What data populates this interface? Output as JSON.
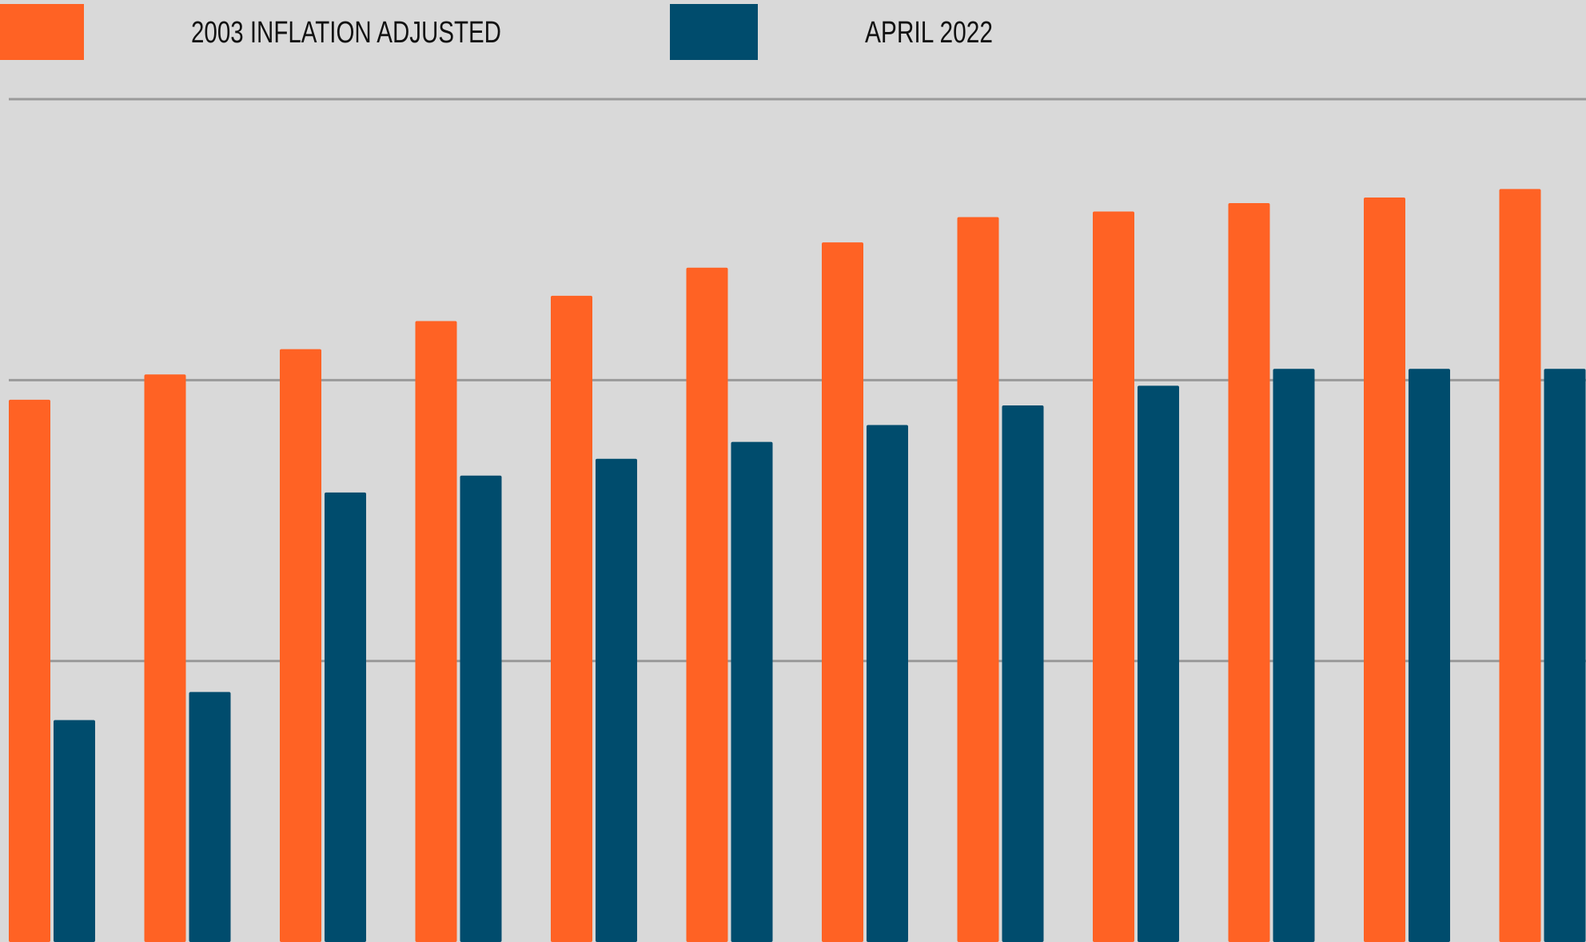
{
  "chart_data": {
    "type": "bar",
    "categories": [
      null,
      null,
      null,
      null,
      null,
      null,
      null,
      null,
      null,
      null,
      null,
      null
    ],
    "series": [
      {
        "name": "2003 INFLATION ADJUSTED",
        "color": "#ff6224",
        "values": [
          1.93,
          2.02,
          2.11,
          2.21,
          2.3,
          2.4,
          2.49,
          2.58,
          2.6,
          2.63,
          2.65,
          2.68
        ]
      },
      {
        "name": "APRIL 2022",
        "color": "#004c6d",
        "values": [
          0.79,
          0.89,
          1.6,
          1.66,
          1.72,
          1.78,
          1.84,
          1.91,
          1.98,
          2.04,
          2.04,
          2.04
        ]
      }
    ],
    "ylim": [
      0,
      3
    ],
    "yticks": [
      1,
      2,
      3
    ],
    "grid": true
  }
}
